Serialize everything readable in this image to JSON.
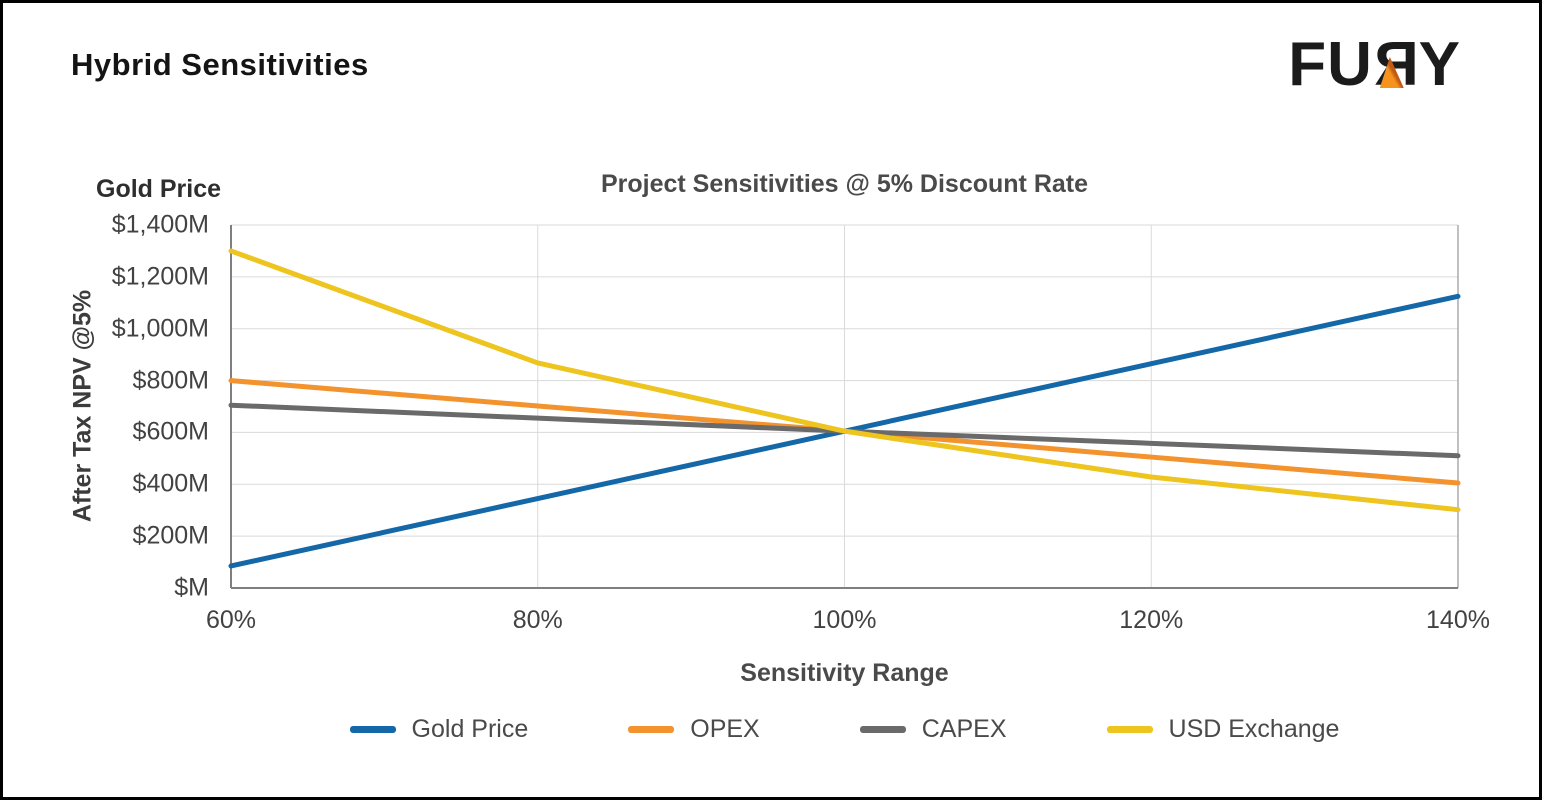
{
  "page": {
    "title": "Hybrid Sensitivities"
  },
  "logo": {
    "part_fu": "FU",
    "part_r": "R",
    "part_y": "Y",
    "triangle_dark": "#c05a14",
    "triangle_light": "#f6921e"
  },
  "chart_data": {
    "type": "line",
    "title": "Project Sensitivities @ 5% Discount Rate",
    "corner_label": "Gold Price",
    "xlabel": "Sensitivity Range",
    "ylabel": "After Tax NPV @5%",
    "x_tick_labels": [
      "60%",
      "80%",
      "100%",
      "120%",
      "140%"
    ],
    "x_values": [
      60,
      80,
      100,
      120,
      140
    ],
    "y_tick_labels": [
      "$1,400M",
      "$1,200M",
      "$1,000M",
      "$800M",
      "$600M",
      "$400M",
      "$200M",
      "$M"
    ],
    "y_tick_values": [
      1400,
      1200,
      1000,
      800,
      600,
      400,
      200,
      0
    ],
    "xlim": [
      60,
      140
    ],
    "ylim": [
      0,
      1400
    ],
    "grid": true,
    "legend_position": "bottom",
    "colors": {
      "gridline": "#dadada",
      "axis": "#7f7f7f",
      "right_border": "#ababab",
      "top_border": "#dadada"
    },
    "series": [
      {
        "name": "Gold Price",
        "color": "#1568a8",
        "values": [
          85,
          345,
          605,
          865,
          1125
        ]
      },
      {
        "name": "OPEX",
        "color": "#f2932d",
        "values": [
          800,
          702,
          605,
          505,
          405
        ]
      },
      {
        "name": "CAPEX",
        "color": "#6a6a6a",
        "values": [
          705,
          655,
          605,
          558,
          510
        ]
      },
      {
        "name": "USD Exchange",
        "color": "#eec41f",
        "values": [
          1300,
          868,
          605,
          428,
          302
        ]
      }
    ]
  }
}
